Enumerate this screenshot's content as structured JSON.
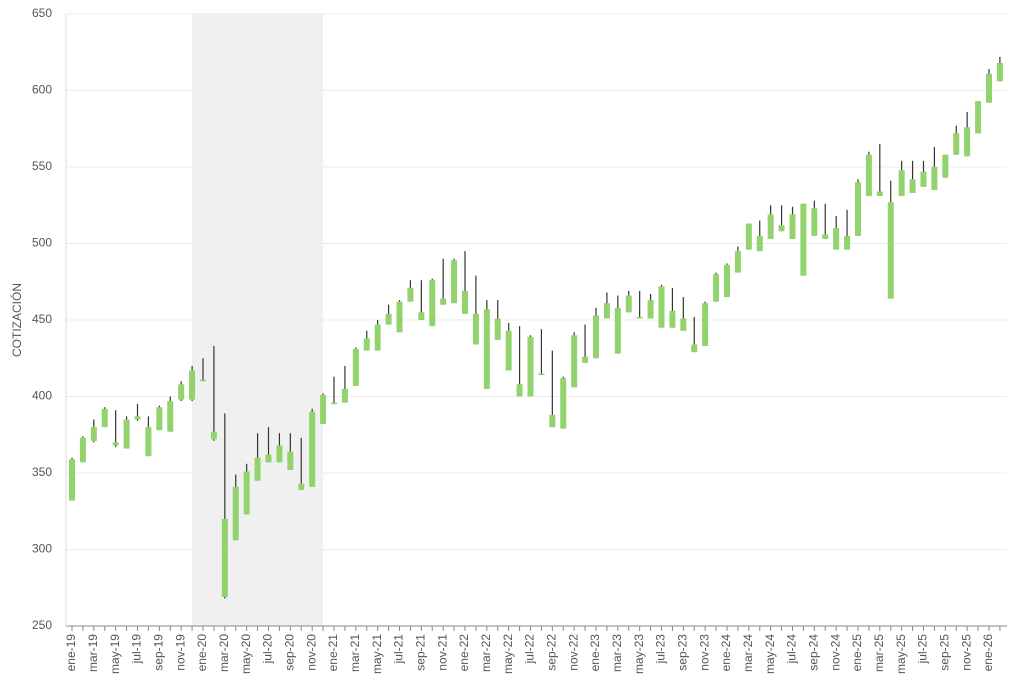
{
  "chart_data": {
    "type": "candlestick",
    "ylabel": "COTIZACIÓN",
    "categories": [
      "ene-19",
      null,
      "mar-19",
      null,
      "may-19",
      null,
      "jul-19",
      null,
      "sep-19",
      null,
      "nov-19",
      null,
      "ene-20",
      null,
      "mar-20",
      null,
      "may-20",
      null,
      "jul-20",
      null,
      "sep-20",
      null,
      "nov-20",
      null,
      "ene-21",
      null,
      "mar-21",
      null,
      "may-21",
      null,
      "jul-21",
      null,
      "sep-21",
      null,
      "nov-21",
      null,
      "ene-22",
      null,
      "mar-22",
      null,
      "may-22",
      null,
      "jul-22",
      null,
      "sep-22",
      null,
      "nov-22",
      null,
      "ene-23",
      null,
      "mar-23",
      null,
      "may-23",
      null,
      "jul-23",
      null,
      "sep-23",
      null,
      "nov-23",
      null,
      "ene-24",
      null,
      "mar-24",
      null,
      "may-24",
      null,
      "jul-24",
      null,
      "sep-24",
      null,
      "nov-24",
      null,
      "ene-25",
      null,
      "mar-25",
      null,
      "may-25",
      null,
      "jul-25",
      null,
      "sep-25",
      null,
      "nov-25",
      null,
      "ene-26",
      null
    ],
    "open": [
      332,
      357,
      371,
      380,
      370,
      366,
      385,
      380,
      378,
      377,
      398,
      398,
      411,
      377,
      320,
      306,
      323,
      345,
      362,
      368,
      364,
      343,
      341,
      382,
      396,
      396,
      407,
      430,
      430,
      447,
      442,
      462,
      455,
      476,
      464,
      461,
      469,
      454,
      457,
      451,
      443,
      408,
      400,
      415,
      388,
      379,
      406,
      426,
      425,
      451,
      458,
      455,
      452,
      451,
      445,
      456,
      451,
      434,
      433,
      462,
      465,
      481,
      496,
      495,
      503,
      512,
      503,
      526,
      505,
      506,
      510,
      505,
      505,
      531,
      534,
      527,
      531,
      533,
      537,
      535,
      543,
      558,
      557,
      572,
      592,
      606
    ],
    "high": [
      360,
      374,
      385,
      393,
      391,
      387,
      395,
      387,
      394,
      400,
      410,
      420,
      425,
      433,
      389,
      349,
      356,
      376,
      380,
      376,
      376,
      373,
      392,
      402,
      413,
      420,
      432,
      443,
      450,
      460,
      463,
      476,
      476,
      477,
      490,
      490,
      495,
      479,
      463,
      463,
      448,
      446,
      440,
      444,
      430,
      413,
      442,
      447,
      458,
      468,
      466,
      469,
      469,
      467,
      473,
      471,
      465,
      452,
      462,
      481,
      487,
      498,
      513,
      515,
      525,
      525,
      524,
      526,
      528,
      526,
      518,
      522,
      542,
      560,
      565,
      541,
      554,
      554,
      554,
      563,
      558,
      577,
      586,
      593,
      614,
      622
    ],
    "low": [
      332,
      357,
      370,
      380,
      367,
      366,
      384,
      361,
      378,
      377,
      397,
      397,
      410,
      371,
      268,
      306,
      323,
      345,
      357,
      357,
      352,
      339,
      341,
      382,
      395,
      396,
      407,
      430,
      430,
      447,
      442,
      462,
      450,
      446,
      460,
      461,
      454,
      434,
      405,
      437,
      417,
      400,
      400,
      414,
      380,
      379,
      406,
      422,
      425,
      451,
      428,
      455,
      451,
      451,
      445,
      445,
      443,
      429,
      433,
      462,
      465,
      481,
      496,
      495,
      503,
      508,
      503,
      479,
      505,
      503,
      496,
      496,
      505,
      531,
      531,
      464,
      531,
      533,
      537,
      535,
      543,
      558,
      557,
      572,
      592,
      606
    ],
    "close": [
      359,
      373,
      380,
      392,
      368,
      385,
      387,
      361,
      393,
      397,
      408,
      417,
      410,
      372,
      269,
      341,
      351,
      360,
      357,
      357,
      352,
      339,
      390,
      401,
      395,
      405,
      431,
      438,
      447,
      454,
      462,
      471,
      450,
      446,
      460,
      489,
      454,
      434,
      405,
      437,
      417,
      400,
      439,
      414,
      380,
      412,
      440,
      422,
      453,
      461,
      428,
      466,
      451,
      463,
      472,
      445,
      443,
      429,
      461,
      480,
      486,
      495,
      513,
      505,
      519,
      508,
      519,
      479,
      523,
      503,
      496,
      496,
      540,
      558,
      531,
      464,
      548,
      542,
      547,
      550,
      558,
      572,
      576,
      593,
      611,
      618
    ],
    "color": "#92d36e",
    "wick_color": "#333333",
    "shade": {
      "from": "ene-20",
      "to": "nov-20",
      "color": "#f0f0f0"
    },
    "ylim": [
      250,
      650
    ],
    "yticks": [
      250,
      300,
      350,
      400,
      450,
      500,
      550,
      600,
      650
    ],
    "grid": true
  }
}
